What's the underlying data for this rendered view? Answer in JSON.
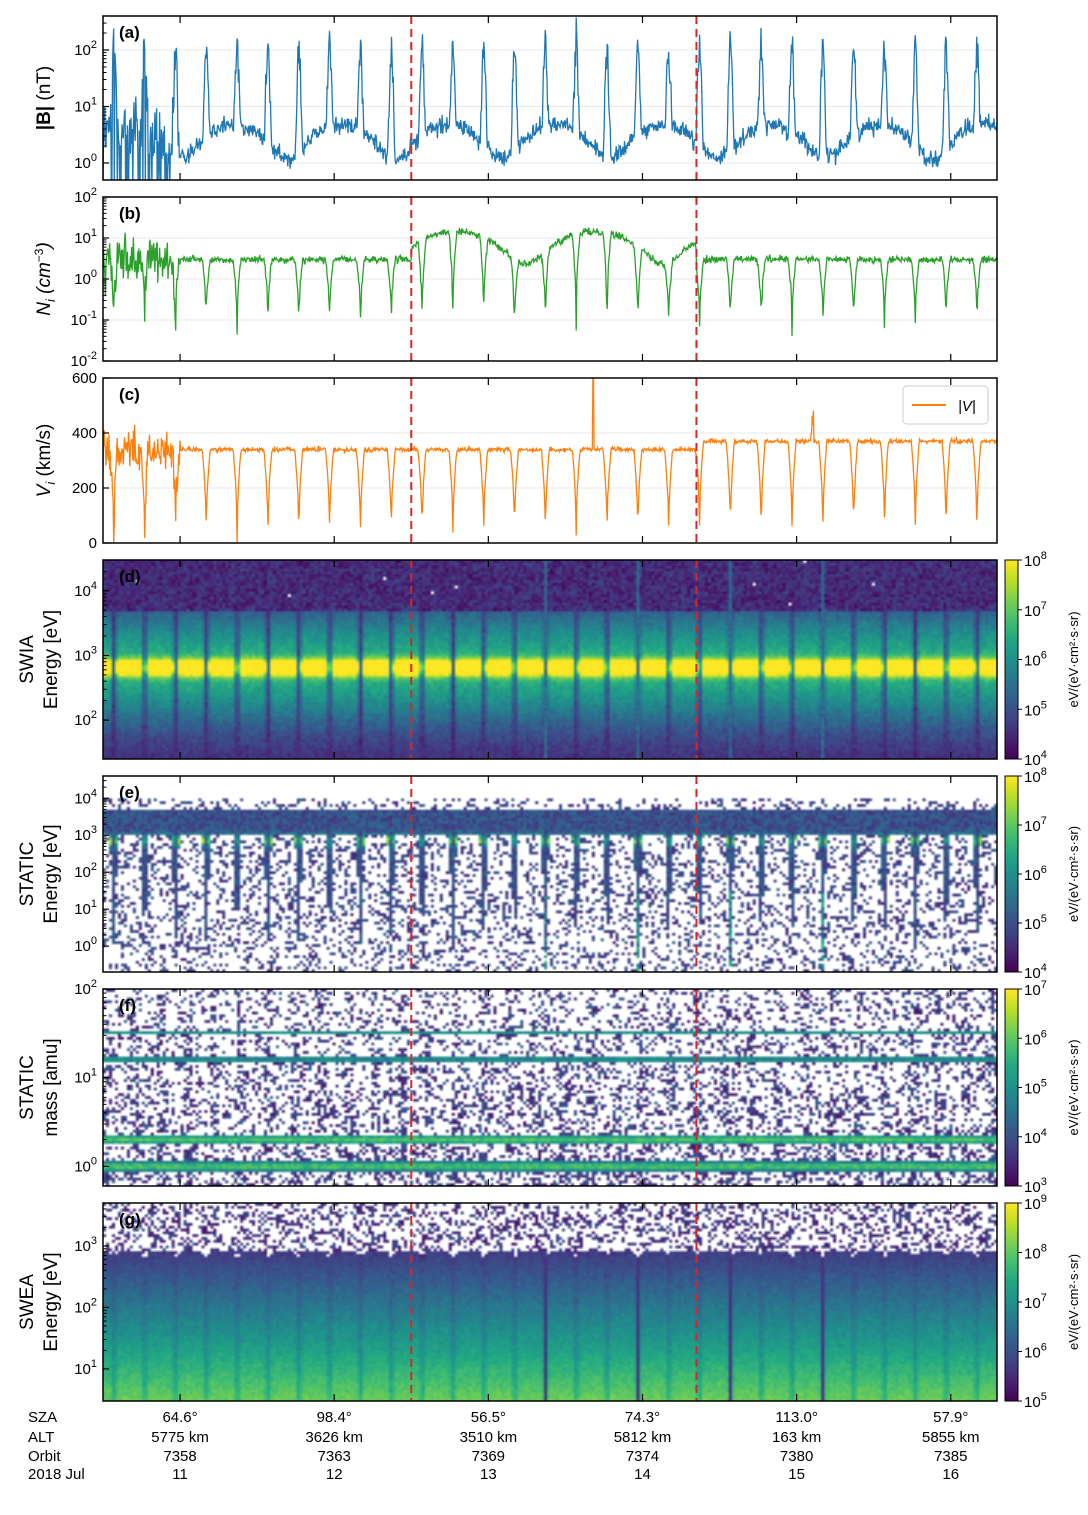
{
  "chart_data": {
    "type": "multi-panel time series and spectrograms",
    "x_axis": {
      "rows": [
        {
          "label": "SZA",
          "values": [
            "64.6°",
            "98.4°",
            "56.5°",
            "74.3°",
            "113.0°",
            "57.9°"
          ]
        },
        {
          "label": "ALT",
          "values": [
            "5775 km",
            "3626 km",
            "3510 km",
            "5812 km",
            "163 km",
            "5855 km"
          ]
        },
        {
          "label": "Orbit",
          "values": [
            "7358",
            "7363",
            "7369",
            "7374",
            "7380",
            "7385"
          ]
        },
        {
          "label": "2018 Jul",
          "values": [
            "11",
            "12",
            "13",
            "14",
            "15",
            "16"
          ]
        }
      ],
      "day_range": [
        10.5,
        16.3
      ],
      "major_days": [
        11,
        12,
        13,
        14,
        15,
        16
      ],
      "event_markers_days": [
        12.5,
        14.35
      ],
      "event_marker_color": "#d62728"
    },
    "panels": [
      {
        "id": "a",
        "tag": "(a)",
        "type": "line",
        "ylabel": "|B| (nT)",
        "yscale": "log",
        "ylim": [
          0.5,
          400
        ],
        "yticks": [
          "10^0",
          "10^1",
          "10^2"
        ],
        "series": [
          {
            "name": "|B|",
            "color": "#1f77b4",
            "baseline": 3,
            "spike_max": 200
          }
        ]
      },
      {
        "id": "b",
        "tag": "(b)",
        "type": "line",
        "ylabel": "N_i (cm^-3)",
        "yscale": "log",
        "ylim": [
          0.01,
          100
        ],
        "yticks": [
          "10^-2",
          "10^-1",
          "10^0",
          "10^1",
          "10^2"
        ],
        "series": [
          {
            "name": "N_i",
            "color": "#2ca02c",
            "baseline_outside": 3,
            "baseline_between_markers": 12,
            "dip_min": 0.015
          }
        ]
      },
      {
        "id": "c",
        "tag": "(c)",
        "type": "line",
        "ylabel": "V_i (km/s)",
        "yscale": "linear",
        "ylim": [
          0,
          600
        ],
        "yticks": [
          "0",
          "200",
          "400",
          "600"
        ],
        "series": [
          {
            "name": "|V|",
            "color": "#ff7f0e",
            "plateau": 340,
            "dip_min": 0
          }
        ],
        "legend": {
          "label": "|V|",
          "loc": "upper right"
        }
      },
      {
        "id": "d",
        "tag": "(d)",
        "type": "heatmap",
        "instrument": "SWIA",
        "ylabel": [
          "SWIA",
          "Energy [eV]"
        ],
        "yscale": "log",
        "ylim": [
          25,
          30000
        ],
        "yticks": [
          "10^2",
          "10^3",
          "10^4"
        ],
        "peak_energy_eV": 650,
        "colorbar": {
          "range": [
            "10^4",
            "10^8"
          ],
          "label": "eV/(eV·cm²·s·sr)"
        }
      },
      {
        "id": "e",
        "tag": "(e)",
        "type": "heatmap",
        "instrument": "STATIC",
        "ylabel": [
          "STATIC",
          "Energy [eV]"
        ],
        "yscale": "log",
        "ylim": [
          0.2,
          40000
        ],
        "yticks": [
          "10^0",
          "10^1",
          "10^2",
          "10^3",
          "10^4"
        ],
        "peak_energy_eV": 700,
        "colorbar": {
          "range": [
            "10^4",
            "10^8"
          ],
          "label": "eV/(eV·cm²·s·sr)"
        }
      },
      {
        "id": "f",
        "tag": "(f)",
        "type": "heatmap",
        "instrument": "STATIC",
        "ylabel": [
          "STATIC",
          "mass [amu]"
        ],
        "yscale": "log",
        "ylim": [
          0.6,
          100
        ],
        "yticks": [
          "10^0",
          "10^1",
          "10^2"
        ],
        "mass_bands_amu": [
          1,
          2,
          16,
          32
        ],
        "colorbar": {
          "range": [
            "10^3",
            "10^7"
          ],
          "label": "eV/(eV·cm²·s·sr)"
        }
      },
      {
        "id": "g",
        "tag": "(g)",
        "type": "heatmap",
        "instrument": "SWEA",
        "ylabel": [
          "SWEA",
          "Energy [eV]"
        ],
        "yscale": "log",
        "ylim": [
          3,
          5000
        ],
        "yticks": [
          "10^1",
          "10^2",
          "10^3"
        ],
        "cutoff_energy_eV": 800,
        "colorbar": {
          "range": [
            "10^5",
            "10^9"
          ],
          "label": "eV/(eV·cm²·s·sr)"
        }
      }
    ],
    "colormap": "viridis"
  }
}
